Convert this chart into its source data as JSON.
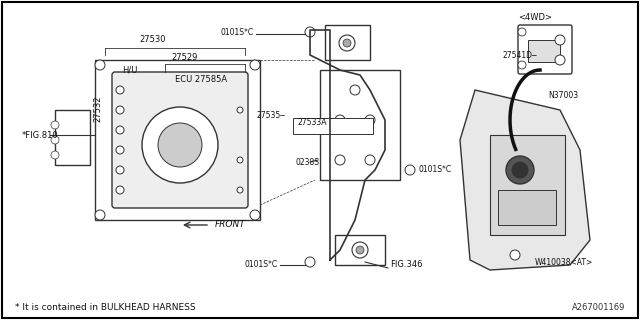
{
  "title": "",
  "background_color": "#ffffff",
  "border_color": "#000000",
  "fig_width": 6.4,
  "fig_height": 3.2,
  "dpi": 100,
  "footnote": "* It is contained in BULKHEAD HARNESS",
  "diagram_id": "A267001169",
  "labels": {
    "fig810": "*FIG.810",
    "27530": "27530",
    "27529": "27529",
    "HU": "H/U",
    "ECU": "ECU",
    "27585A": "27585A",
    "27532": "27532",
    "FRONT": "FRONT",
    "0101SC_top": "0101S*C",
    "FIG346": "FIG.346",
    "0238S": "0238S",
    "0101SC_right": "0101S*C",
    "27533A": "27533A",
    "27535": "27535",
    "0101SC_bot": "0101S*C",
    "W410038AT": "W410038<AT>",
    "N37003": "N37003",
    "27541D": "27541D",
    "4WD": "<4WD>"
  }
}
